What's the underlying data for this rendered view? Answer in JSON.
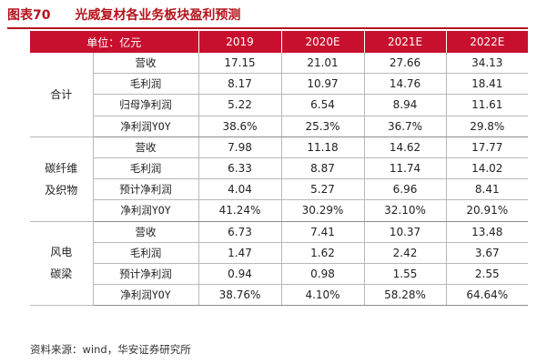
{
  "figure": {
    "number": "图表70",
    "title": "光威复材各业务板块盈利预测"
  },
  "header": [
    "单位：亿元",
    "2019",
    "2020E",
    "2021E",
    "2022E"
  ],
  "segments": [
    {
      "name": "合计",
      "rows": [
        {
          "label": "营收",
          "values": [
            "17.15",
            "21.01",
            "27.66",
            "34.13"
          ]
        },
        {
          "label": "毛利润",
          "values": [
            "8.17",
            "10.97",
            "14.76",
            "18.41"
          ]
        },
        {
          "label": "归母净利润",
          "values": [
            "5.22",
            "6.54",
            "8.94",
            "11.61"
          ]
        },
        {
          "label": "净利润YOY",
          "values": [
            "38.6%",
            "25.3%",
            "36.7%",
            "29.8%"
          ]
        }
      ]
    },
    {
      "name": "碳纤维及织物",
      "rows": [
        {
          "label": "营收",
          "values": [
            "7.98",
            "11.18",
            "14.62",
            "17.77"
          ]
        },
        {
          "label": "毛利润",
          "values": [
            "6.33",
            "8.87",
            "11.74",
            "14.02"
          ]
        },
        {
          "label": "预计净利润",
          "values": [
            "4.04",
            "5.27",
            "6.96",
            "8.41"
          ]
        },
        {
          "label": "净利润YOY",
          "values": [
            "41.24%",
            "30.29%",
            "32.10%",
            "20.91%"
          ]
        }
      ]
    },
    {
      "name": "风电碳梁",
      "rows": [
        {
          "label": "营收",
          "values": [
            "6.73",
            "7.41",
            "10.37",
            "13.48"
          ]
        },
        {
          "label": "毛利润",
          "values": [
            "1.47",
            "1.62",
            "2.42",
            "3.67"
          ]
        },
        {
          "label": "预计净利润",
          "values": [
            "0.94",
            "0.98",
            "1.55",
            "2.55"
          ]
        },
        {
          "label": "净利润YOY",
          "values": [
            "38.76%",
            "4.10%",
            "58.28%",
            "64.64%"
          ]
        }
      ]
    }
  ],
  "source": "资料来源：wind，华安证券研究所",
  "colors": {
    "accent": "#c8102e",
    "title": "#b5121b"
  }
}
